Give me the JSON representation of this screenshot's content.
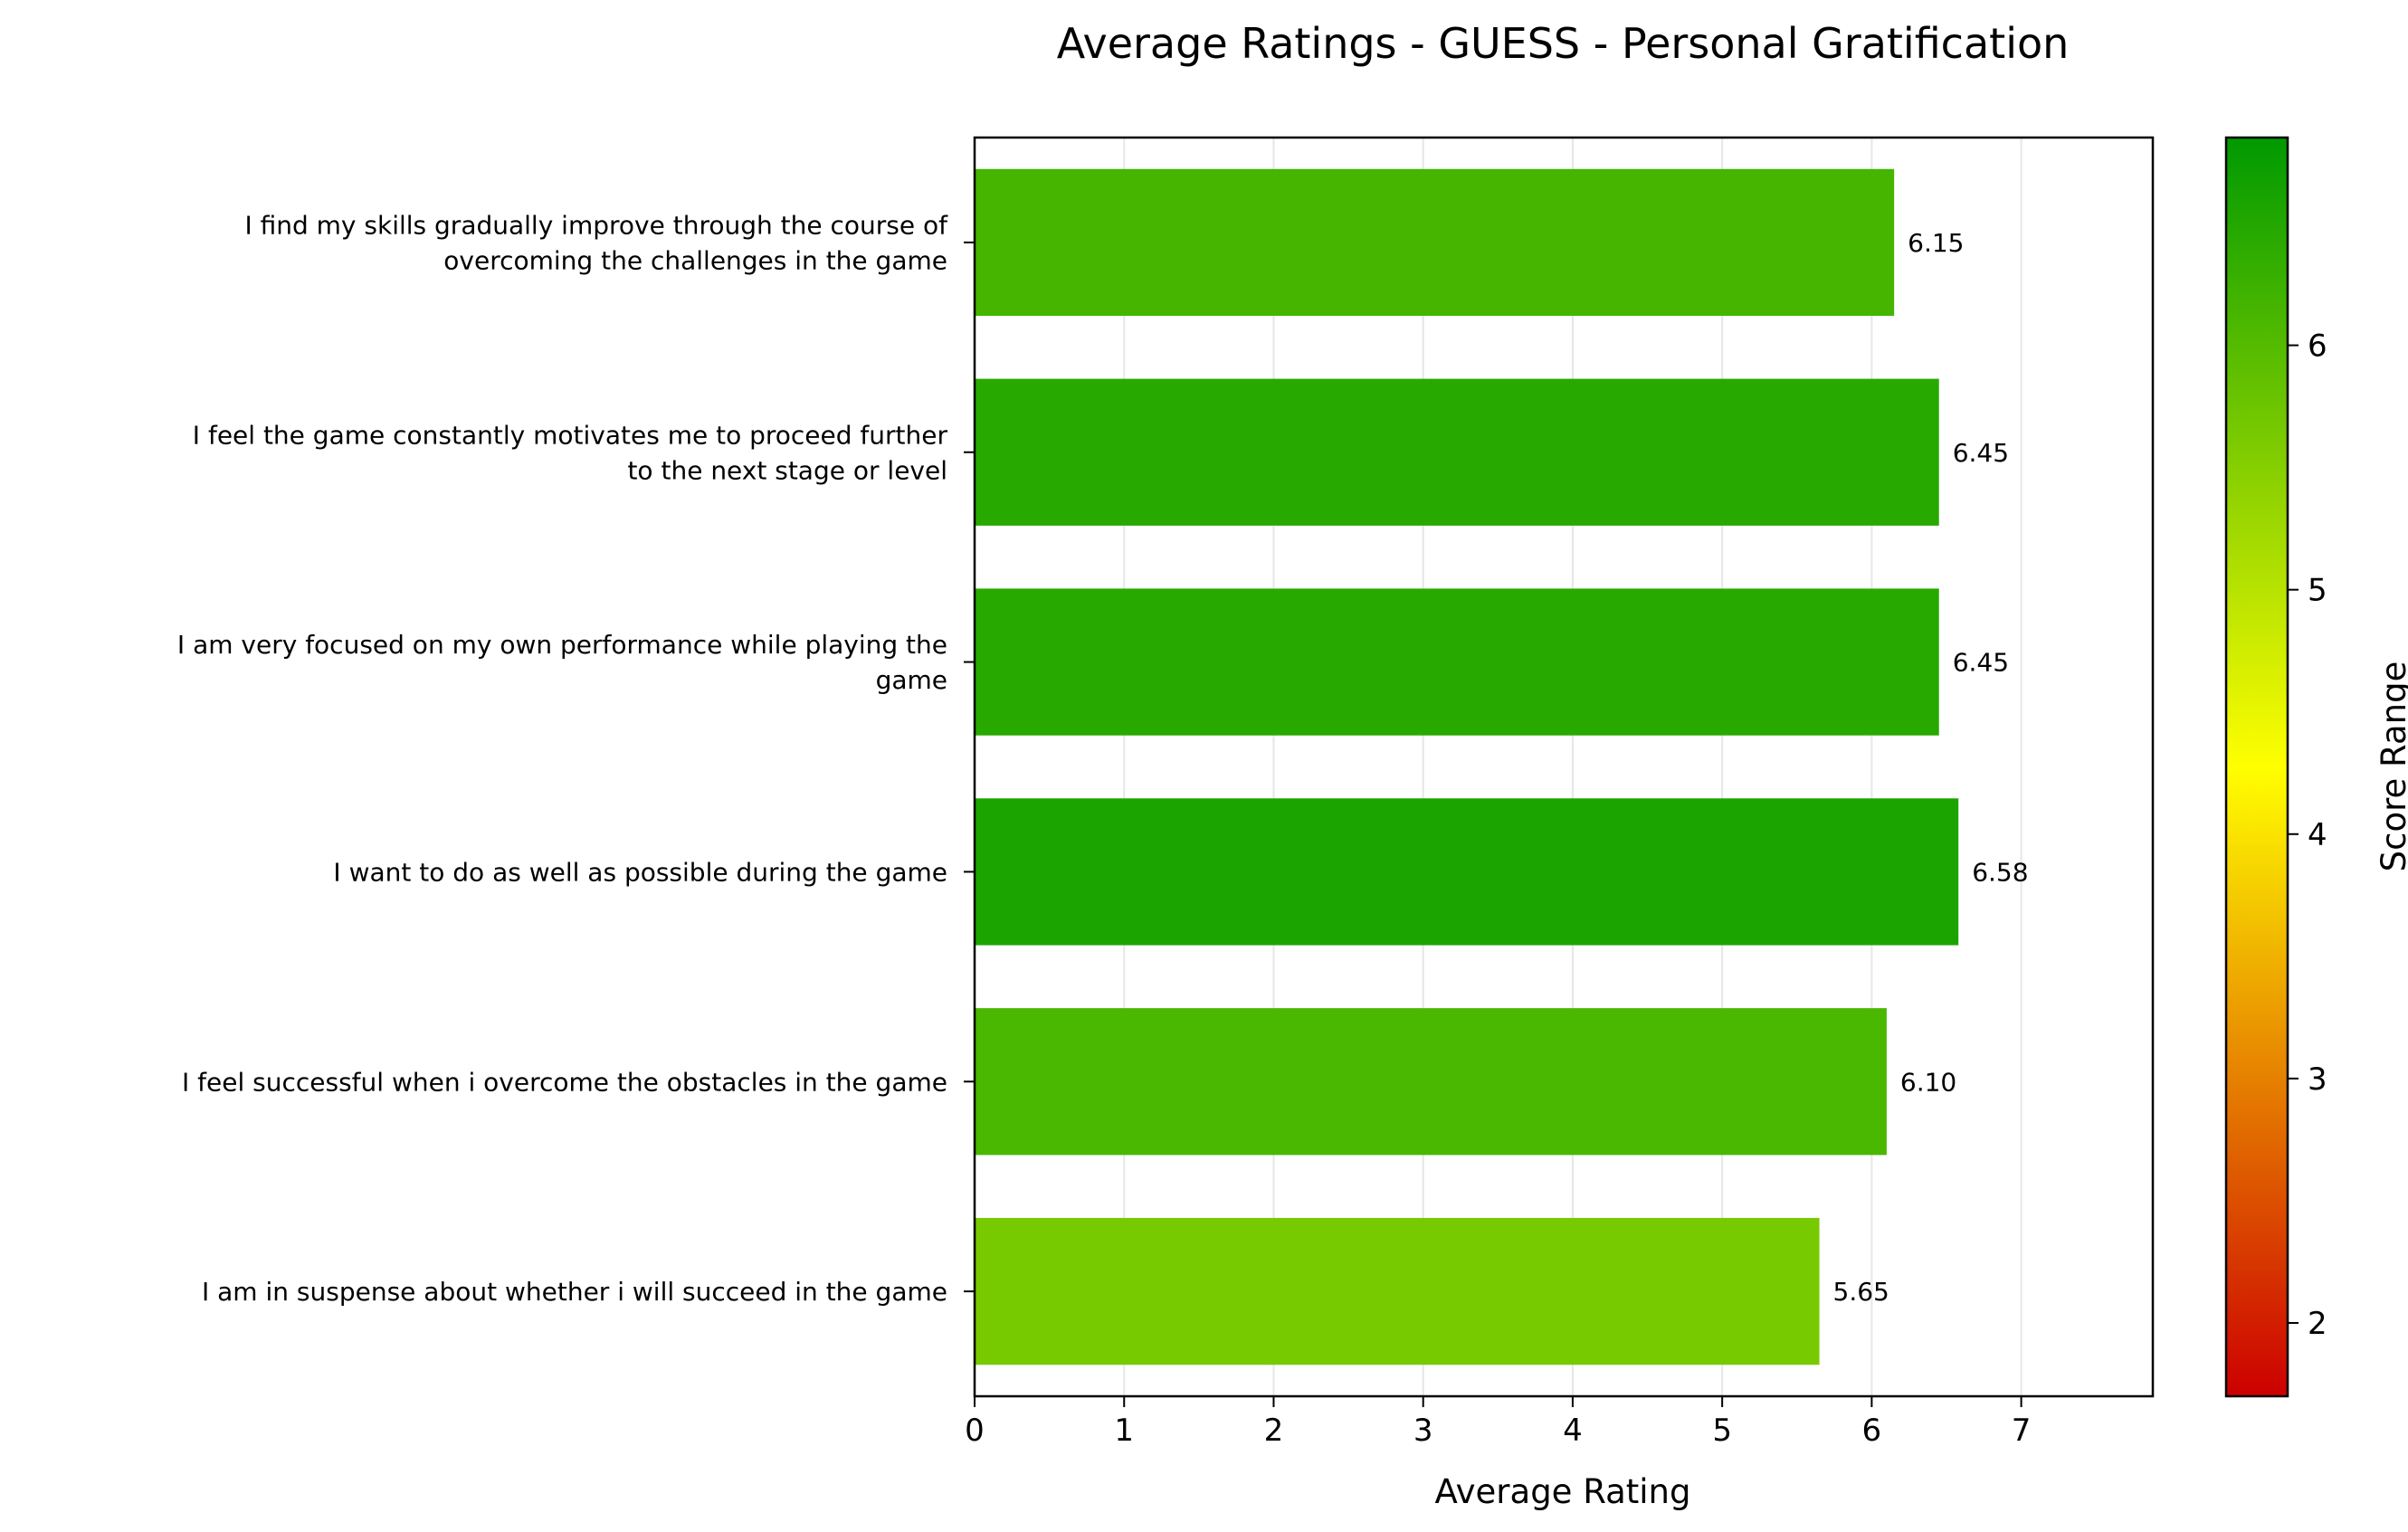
{
  "chart_data": {
    "type": "bar",
    "orientation": "horizontal",
    "title": "Average Ratings - GUESS - Personal Gratification",
    "xlabel": "Average Rating",
    "ylabel": "",
    "xlim": [
      0,
      7.88
    ],
    "xticks": [
      "0",
      "1",
      "2",
      "3",
      "4",
      "5",
      "6",
      "7"
    ],
    "grid": "vertical",
    "categories": [
      [
        "I find my skills gradually improve through the course of",
        "overcoming the challenges in the game"
      ],
      [
        "I feel the game constantly motivates me to proceed further",
        "to the next stage or level"
      ],
      [
        "I am very focused on my own performance while playing the",
        "game"
      ],
      [
        "I want to do as well as possible during the game"
      ],
      [
        "I feel successful when i overcome the obstacles in the game"
      ],
      [
        "I am in suspense about whether i will succeed in the game"
      ]
    ],
    "values": [
      6.15,
      6.45,
      6.45,
      6.58,
      6.1,
      5.65
    ],
    "value_labels": [
      "6.15",
      "6.45",
      "6.45",
      "6.58",
      "6.10",
      "5.65"
    ],
    "colorbar": {
      "label": "Score Range",
      "range": [
        1.7,
        6.85
      ],
      "ticks": [
        "2",
        "3",
        "4",
        "5",
        "6"
      ],
      "colors": [
        "#cc0000",
        "#ffff00",
        "#009900"
      ]
    }
  }
}
